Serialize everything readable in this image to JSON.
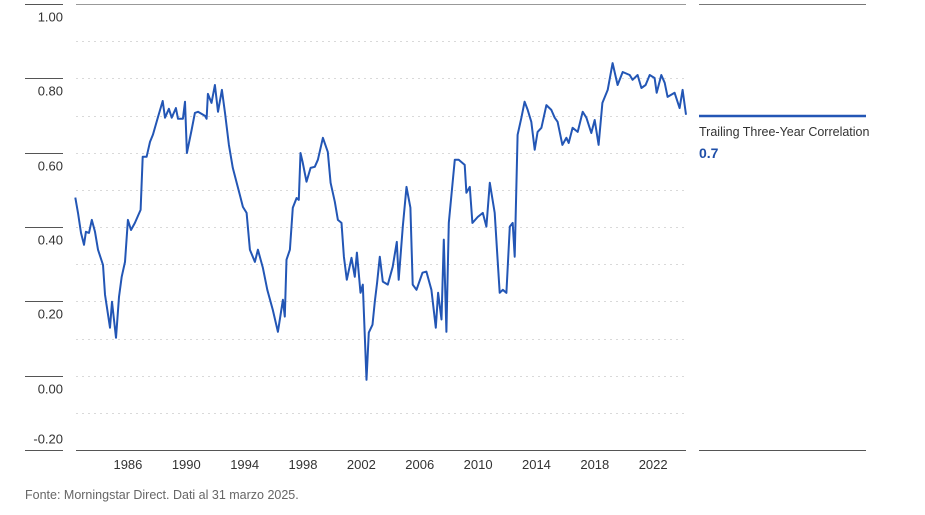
{
  "chart_data": {
    "type": "line",
    "title": "",
    "xlabel": "",
    "ylabel": "",
    "xlim": [
      1982.44,
      2024.25
    ],
    "ylim": [
      -0.2,
      1.0
    ],
    "x_ticks": [
      1986,
      1990,
      1994,
      1998,
      2002,
      2006,
      2010,
      2014,
      2018,
      2022
    ],
    "x_tick_labels": [
      "1986",
      "1990",
      "1994",
      "1998",
      "2002",
      "2006",
      "2010",
      "2014",
      "2018",
      "2022"
    ],
    "y_ticks": [
      1.0,
      0.8,
      0.6,
      0.4,
      0.2,
      0.0,
      -0.2
    ],
    "y_tick_labels": [
      "1.00",
      "0.80",
      "0.60",
      "0.40",
      "0.20",
      "0.00",
      "-0.20"
    ],
    "grid": true,
    "grid_minor_step": 0.1,
    "legend_position": "right",
    "series": [
      {
        "name": "Trailing Three-Year Correlation",
        "latest_value_label": "0.7",
        "color": "#2356b5",
        "points": [
          [
            1982.39,
            0.479
          ],
          [
            1982.58,
            0.438
          ],
          [
            1982.78,
            0.384
          ],
          [
            1982.99,
            0.352
          ],
          [
            1983.12,
            0.387
          ],
          [
            1983.33,
            0.384
          ],
          [
            1983.52,
            0.419
          ],
          [
            1983.74,
            0.387
          ],
          [
            1983.95,
            0.339
          ],
          [
            1984.29,
            0.298
          ],
          [
            1984.43,
            0.218
          ],
          [
            1984.77,
            0.129
          ],
          [
            1984.91,
            0.199
          ],
          [
            1985.18,
            0.102
          ],
          [
            1985.39,
            0.212
          ],
          [
            1985.57,
            0.266
          ],
          [
            1985.8,
            0.306
          ],
          [
            1986.0,
            0.419
          ],
          [
            1986.21,
            0.392
          ],
          [
            1986.48,
            0.411
          ],
          [
            1986.87,
            0.446
          ],
          [
            1987.01,
            0.589
          ],
          [
            1987.28,
            0.589
          ],
          [
            1987.51,
            0.629
          ],
          [
            1987.71,
            0.648
          ],
          [
            1988.06,
            0.696
          ],
          [
            1988.38,
            0.739
          ],
          [
            1988.54,
            0.694
          ],
          [
            1988.81,
            0.718
          ],
          [
            1989.0,
            0.694
          ],
          [
            1989.29,
            0.72
          ],
          [
            1989.43,
            0.691
          ],
          [
            1989.77,
            0.691
          ],
          [
            1989.91,
            0.737
          ],
          [
            1990.04,
            0.599
          ],
          [
            1990.36,
            0.661
          ],
          [
            1990.59,
            0.707
          ],
          [
            1990.8,
            0.71
          ],
          [
            1991.28,
            0.699
          ],
          [
            1991.39,
            0.691
          ],
          [
            1991.48,
            0.758
          ],
          [
            1991.73,
            0.734
          ],
          [
            1991.96,
            0.782
          ],
          [
            1992.17,
            0.71
          ],
          [
            1992.44,
            0.769
          ],
          [
            1992.65,
            0.707
          ],
          [
            1992.92,
            0.621
          ],
          [
            1993.19,
            0.559
          ],
          [
            1993.67,
            0.487
          ],
          [
            1993.88,
            0.454
          ],
          [
            1994.13,
            0.438
          ],
          [
            1994.36,
            0.339
          ],
          [
            1994.7,
            0.306
          ],
          [
            1994.91,
            0.339
          ],
          [
            1995.25,
            0.29
          ],
          [
            1995.55,
            0.231
          ],
          [
            1995.93,
            0.177
          ],
          [
            1996.28,
            0.118
          ],
          [
            1996.62,
            0.204
          ],
          [
            1996.75,
            0.159
          ],
          [
            1996.87,
            0.312
          ],
          [
            1997.1,
            0.339
          ],
          [
            1997.3,
            0.452
          ],
          [
            1997.56,
            0.478
          ],
          [
            1997.71,
            0.473
          ],
          [
            1997.83,
            0.599
          ],
          [
            1997.97,
            0.575
          ],
          [
            1998.24,
            0.522
          ],
          [
            1998.52,
            0.559
          ],
          [
            1998.81,
            0.562
          ],
          [
            1999.02,
            0.581
          ],
          [
            1999.36,
            0.64
          ],
          [
            1999.7,
            0.602
          ],
          [
            1999.89,
            0.519
          ],
          [
            2000.18,
            0.468
          ],
          [
            2000.39,
            0.419
          ],
          [
            2000.64,
            0.411
          ],
          [
            2000.8,
            0.32
          ],
          [
            2001.0,
            0.258
          ],
          [
            2001.32,
            0.317
          ],
          [
            2001.55,
            0.266
          ],
          [
            2001.69,
            0.331
          ],
          [
            2001.94,
            0.223
          ],
          [
            2002.1,
            0.245
          ],
          [
            2002.35,
            -0.011
          ],
          [
            2002.51,
            0.116
          ],
          [
            2002.76,
            0.137
          ],
          [
            2002.92,
            0.199
          ],
          [
            2003.08,
            0.25
          ],
          [
            2003.26,
            0.32
          ],
          [
            2003.47,
            0.253
          ],
          [
            2003.81,
            0.245
          ],
          [
            2004.15,
            0.293
          ],
          [
            2004.43,
            0.36
          ],
          [
            2004.56,
            0.258
          ],
          [
            2004.84,
            0.401
          ],
          [
            2005.09,
            0.508
          ],
          [
            2005.36,
            0.452
          ],
          [
            2005.52,
            0.245
          ],
          [
            2005.78,
            0.231
          ],
          [
            2006.19,
            0.277
          ],
          [
            2006.46,
            0.28
          ],
          [
            2006.8,
            0.231
          ],
          [
            2007.1,
            0.129
          ],
          [
            2007.26,
            0.223
          ],
          [
            2007.49,
            0.151
          ],
          [
            2007.65,
            0.366
          ],
          [
            2007.83,
            0.118
          ],
          [
            2007.99,
            0.411
          ],
          [
            2008.26,
            0.522
          ],
          [
            2008.4,
            0.581
          ],
          [
            2008.67,
            0.581
          ],
          [
            2009.08,
            0.567
          ],
          [
            2009.2,
            0.492
          ],
          [
            2009.43,
            0.508
          ],
          [
            2009.61,
            0.411
          ],
          [
            2009.97,
            0.427
          ],
          [
            2010.32,
            0.438
          ],
          [
            2010.57,
            0.401
          ],
          [
            2010.8,
            0.519
          ],
          [
            2011.14,
            0.438
          ],
          [
            2011.34,
            0.312
          ],
          [
            2011.48,
            0.223
          ],
          [
            2011.69,
            0.231
          ],
          [
            2011.94,
            0.223
          ],
          [
            2012.17,
            0.401
          ],
          [
            2012.37,
            0.411
          ],
          [
            2012.51,
            0.32
          ],
          [
            2012.71,
            0.648
          ],
          [
            2012.97,
            0.694
          ],
          [
            2013.19,
            0.737
          ],
          [
            2013.4,
            0.715
          ],
          [
            2013.65,
            0.683
          ],
          [
            2013.88,
            0.608
          ],
          [
            2014.08,
            0.656
          ],
          [
            2014.34,
            0.667
          ],
          [
            2014.68,
            0.728
          ],
          [
            2015.02,
            0.715
          ],
          [
            2015.25,
            0.694
          ],
          [
            2015.45,
            0.683
          ],
          [
            2015.78,
            0.621
          ],
          [
            2016.05,
            0.64
          ],
          [
            2016.21,
            0.626
          ],
          [
            2016.48,
            0.667
          ],
          [
            2016.83,
            0.656
          ],
          [
            2017.17,
            0.71
          ],
          [
            2017.42,
            0.694
          ],
          [
            2017.76,
            0.653
          ],
          [
            2017.99,
            0.688
          ],
          [
            2018.26,
            0.621
          ],
          [
            2018.52,
            0.734
          ],
          [
            2018.88,
            0.769
          ],
          [
            2019.22,
            0.841
          ],
          [
            2019.56,
            0.782
          ],
          [
            2019.91,
            0.817
          ],
          [
            2020.39,
            0.809
          ],
          [
            2020.59,
            0.796
          ],
          [
            2020.93,
            0.809
          ],
          [
            2021.19,
            0.774
          ],
          [
            2021.48,
            0.782
          ],
          [
            2021.76,
            0.809
          ],
          [
            2022.1,
            0.801
          ],
          [
            2022.24,
            0.761
          ],
          [
            2022.56,
            0.809
          ],
          [
            2022.79,
            0.788
          ],
          [
            2022.99,
            0.75
          ],
          [
            2023.47,
            0.761
          ],
          [
            2023.81,
            0.72
          ],
          [
            2024.02,
            0.769
          ],
          [
            2024.25,
            0.702
          ]
        ]
      }
    ]
  },
  "legend": {
    "label": "Trailing Three-Year Correlation",
    "value": "0.7"
  },
  "footer": {
    "source": "Fonte: Morningstar Direct. Dati al 31 marzo 2025."
  }
}
